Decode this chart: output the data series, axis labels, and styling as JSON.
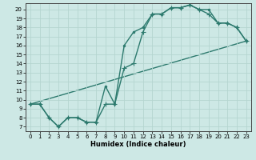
{
  "xlabel": "Humidex (Indice chaleur)",
  "bg_color": "#cde8e5",
  "line_color": "#2d7a6e",
  "grid_color": "#b5d5d0",
  "xlim": [
    -0.5,
    23.5
  ],
  "ylim": [
    6.5,
    20.7
  ],
  "yticks": [
    7,
    8,
    9,
    10,
    11,
    12,
    13,
    14,
    15,
    16,
    17,
    18,
    19,
    20
  ],
  "xticks": [
    0,
    1,
    2,
    3,
    4,
    5,
    6,
    7,
    8,
    9,
    10,
    11,
    12,
    13,
    14,
    15,
    16,
    17,
    18,
    19,
    20,
    21,
    22,
    23
  ],
  "line1_x": [
    0,
    1,
    2,
    3,
    4,
    5,
    6,
    7,
    8,
    9,
    10,
    11,
    12,
    13,
    14,
    15,
    16,
    17,
    18,
    19,
    20,
    21,
    22,
    23
  ],
  "line1_y": [
    9.5,
    9.5,
    8.0,
    7.0,
    8.0,
    8.0,
    7.5,
    7.5,
    11.5,
    9.5,
    16.0,
    17.5,
    18.0,
    19.5,
    19.5,
    20.2,
    20.2,
    20.5,
    20.0,
    20.0,
    18.5,
    18.5,
    18.0,
    16.5
  ],
  "line2_x": [
    0,
    1,
    2,
    3,
    4,
    5,
    6,
    7,
    8,
    9,
    10,
    11,
    12,
    13,
    14,
    15,
    16,
    17,
    18,
    19,
    20,
    21,
    22,
    23
  ],
  "line2_y": [
    9.5,
    9.5,
    8.0,
    7.0,
    8.0,
    8.0,
    7.5,
    7.5,
    9.5,
    9.5,
    13.5,
    14.0,
    17.5,
    19.5,
    19.5,
    20.2,
    20.2,
    20.5,
    20.0,
    19.5,
    18.5,
    18.5,
    18.0,
    16.5
  ],
  "line3_x": [
    0,
    23
  ],
  "line3_y": [
    9.5,
    16.5
  ],
  "marker_size": 2.5,
  "linewidth": 1.0
}
